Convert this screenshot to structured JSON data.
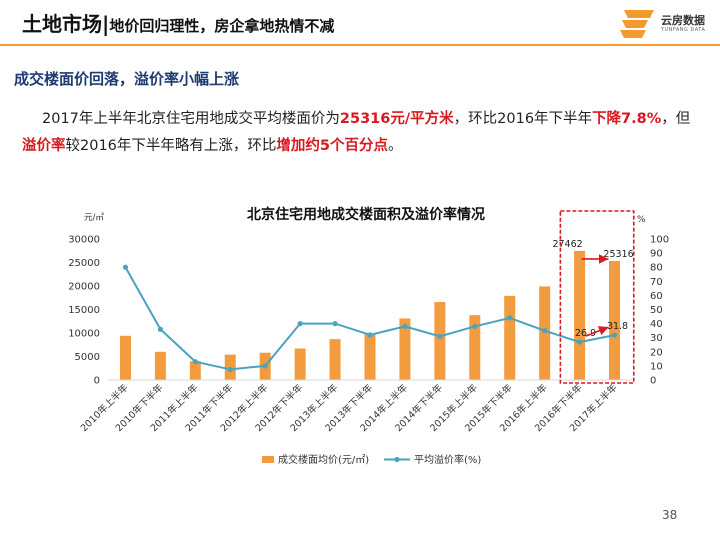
{
  "header": {
    "title": "土地市场",
    "separator": "|",
    "subtitle": "地价回归理性，房企拿地热情不减",
    "logo_text": "云房数据",
    "logo_sub": "YUNFANG DATA"
  },
  "section_title": "成交楼面价回落，溢价率小幅上涨",
  "paragraph": {
    "p1": "2017年上半年北京住宅用地成交平均楼面价为",
    "h1": "25316元/平方米",
    "p2": "，环比2016年下半年",
    "h2": "下降7.8%",
    "p3": "，但",
    "h3": "溢价率",
    "p4": "较2016年下半年略有上涨，环比",
    "h4": "增加约5个百分点",
    "p5": "。"
  },
  "page_number": "38",
  "colors": {
    "bar": "#f39b3f",
    "line": "#4aa3c2",
    "highlight": "#d71920",
    "header_line": "#f29a2e"
  },
  "chart_data": {
    "type": "bar",
    "title": "北京住宅用地成交楼面积及溢价率情况",
    "left_axis_unit": "元/㎡",
    "right_axis_unit": "%",
    "categories": [
      "2010年上半年",
      "2010年下半年",
      "2011年上半年",
      "2011年下半年",
      "2012年上半年",
      "2012年下半年",
      "2013年上半年",
      "2013年下半年",
      "2014年上半年",
      "2014年下半年",
      "2015年上半年",
      "2015年下半年",
      "2016年上半年",
      "2016年下半年",
      "2017年上半年"
    ],
    "ylim_left": [
      0,
      30000
    ],
    "yticks_left": [
      0,
      5000,
      10000,
      15000,
      20000,
      25000,
      30000
    ],
    "ylim_right": [
      0,
      100
    ],
    "yticks_right": [
      0,
      10,
      20,
      30,
      40,
      50,
      60,
      70,
      80,
      90,
      100
    ],
    "series": [
      {
        "name": "成交楼面均价(元/㎡)",
        "type": "bar",
        "axis": "left",
        "values": [
          9400,
          6000,
          4000,
          5400,
          5800,
          6700,
          8700,
          9800,
          13100,
          16600,
          13800,
          17900,
          19900,
          27462,
          25316
        ]
      },
      {
        "name": "平均溢价率(%)",
        "type": "line",
        "axis": "right",
        "values": [
          80,
          36,
          13,
          7.5,
          10,
          40,
          40,
          32,
          38,
          31,
          38,
          44,
          35,
          26.9,
          31.8
        ]
      }
    ],
    "data_labels": [
      {
        "series": 0,
        "index": 13,
        "text": "27462"
      },
      {
        "series": 0,
        "index": 14,
        "text": "25316"
      },
      {
        "series": 1,
        "index": 13,
        "text": "26.9"
      },
      {
        "series": 1,
        "index": 14,
        "text": "31.8"
      }
    ],
    "legend_position": "bottom",
    "highlight_range": [
      "2016年下半年",
      "2017年上半年"
    ]
  }
}
